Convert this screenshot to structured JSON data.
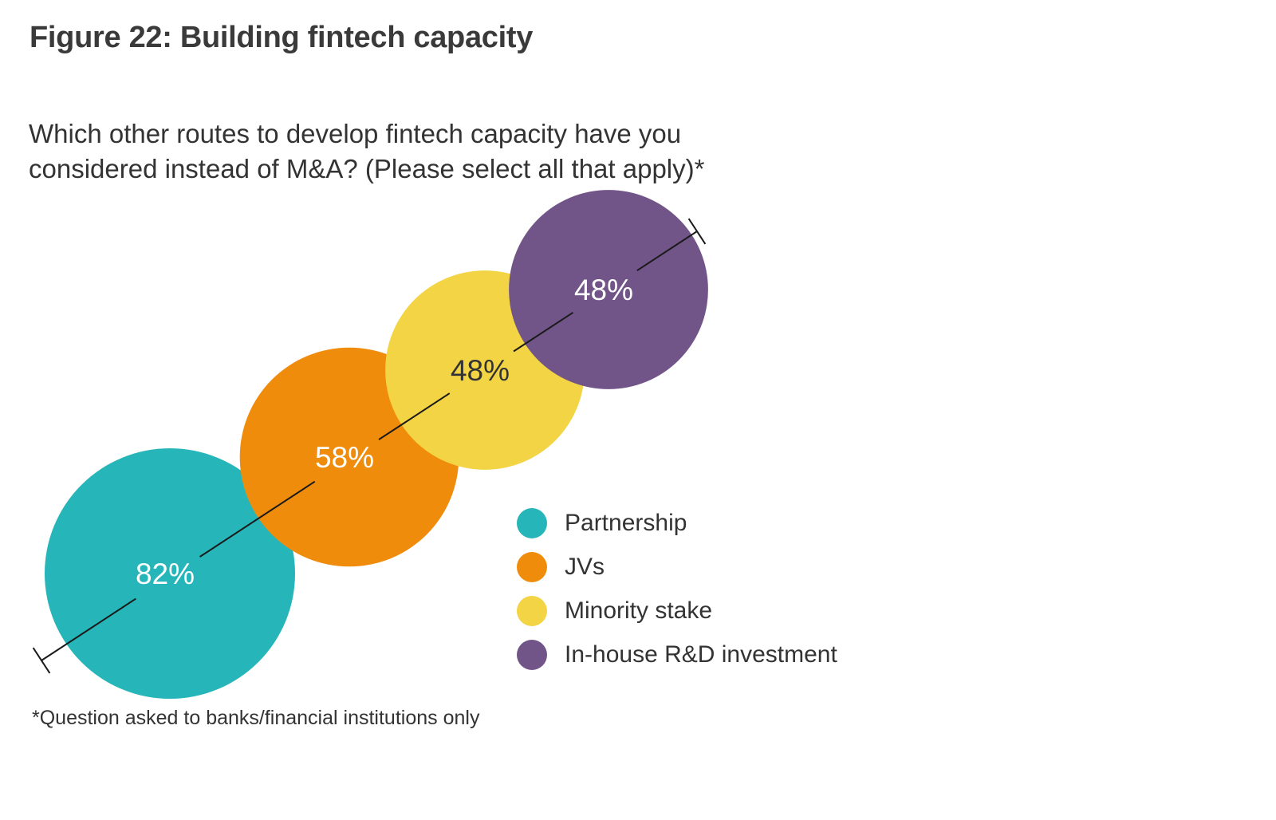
{
  "figure": {
    "title": "Figure 22: Building fintech capacity",
    "question": "Which other routes to develop fintech capacity have you considered instead of M&A? (Please select all that apply)*",
    "footnote": "*Question asked to banks/financial institutions only"
  },
  "chart_data": {
    "type": "bubble",
    "title": "Figure 22: Building fintech capacity",
    "subtitle": "Which other routes to develop fintech capacity have you considered instead of M&A? (Please select all that apply)*",
    "unit": "%",
    "legend_position": "right",
    "grid": false,
    "series": [
      {
        "name": "Partnership",
        "value": 82,
        "label": "82%",
        "color": "#26B5B8",
        "label_color": "#ffffff"
      },
      {
        "name": "JVs",
        "value": 58,
        "label": "58%",
        "color": "#F08C0B",
        "label_color": "#ffffff"
      },
      {
        "name": "Minority stake",
        "value": 48,
        "label": "48%",
        "color": "#F2D444",
        "label_color": "#333333"
      },
      {
        "name": "In-house R&D investment",
        "value": 48,
        "label": "48%",
        "color": "#725588",
        "label_color": "#ffffff"
      }
    ]
  }
}
